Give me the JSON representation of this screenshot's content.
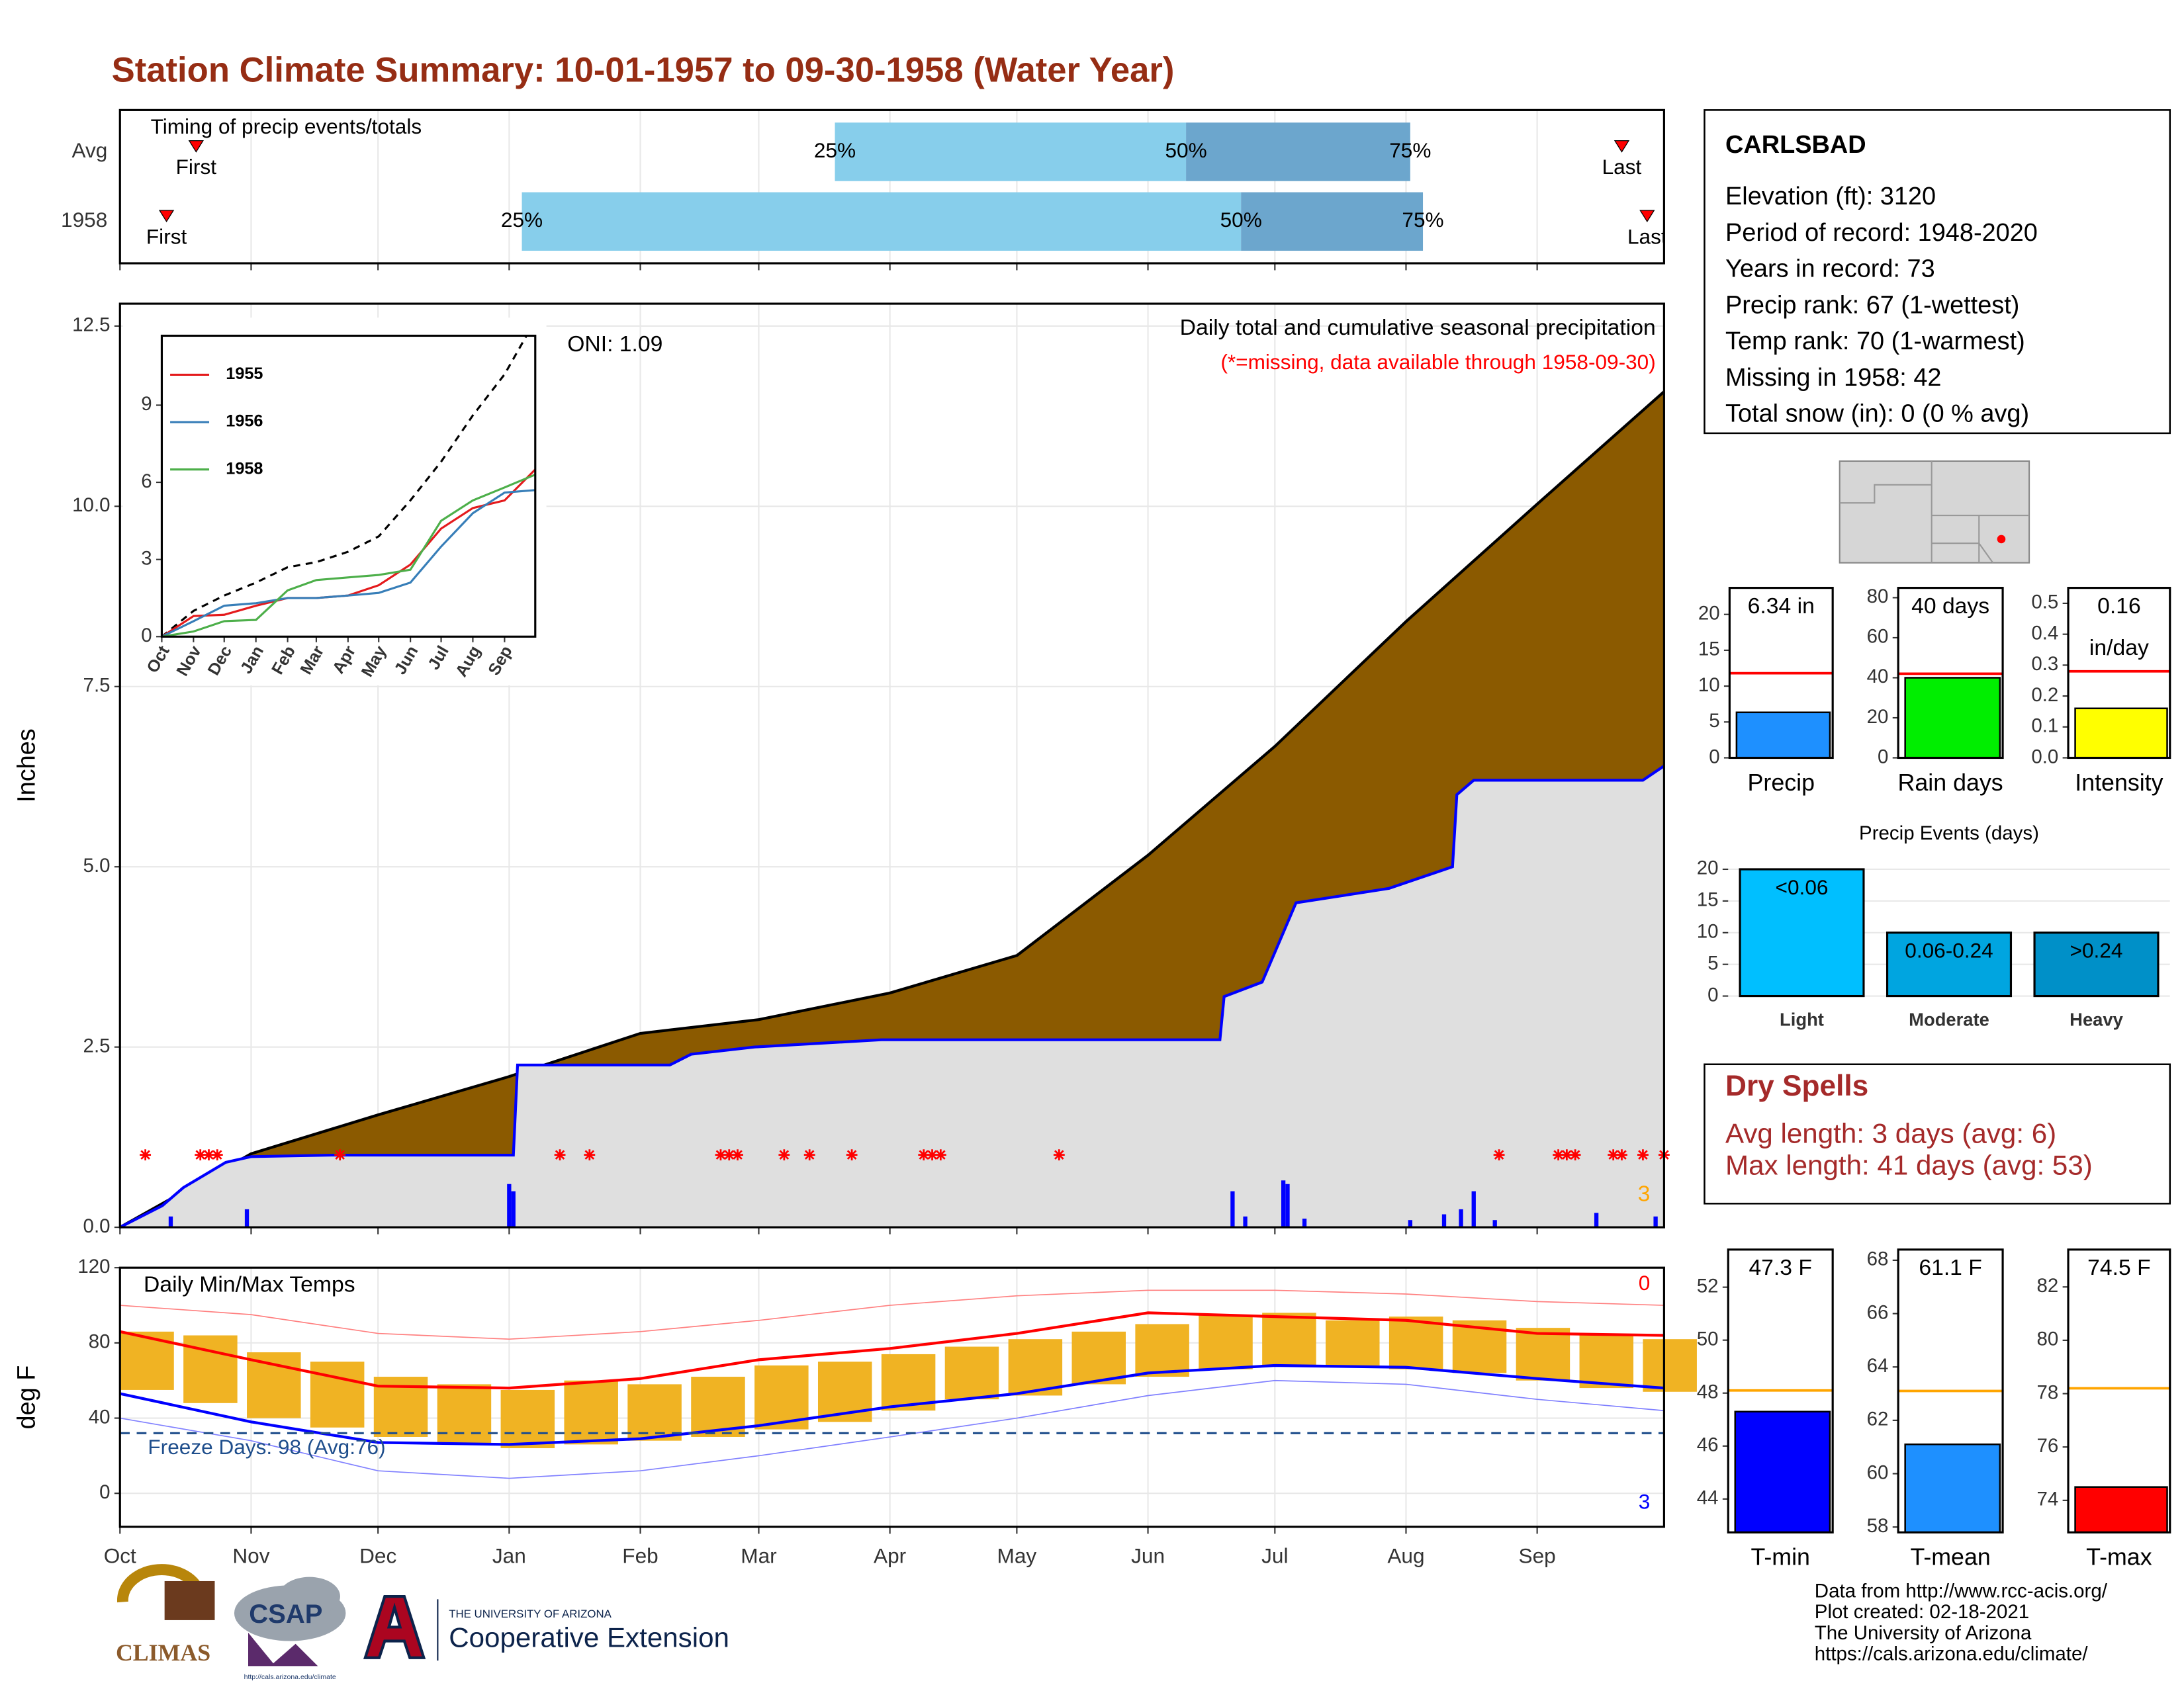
{
  "title": "Station Climate Summary: 10-01-1957 to 09-30-1958 (Water Year)",
  "station": {
    "name": "CARLSBAD",
    "lines": [
      "Elevation (ft): 3120",
      "Period of record: 1948-2020",
      "Years in record: 73",
      "Precip rank: 67 (1-wettest)",
      "Temp rank: 70 (1-warmest)",
      "Missing in 1958: 42",
      "Total snow (in): 0 (0 % avg)"
    ]
  },
  "dry_spells": {
    "title": "Dry Spells",
    "lines": [
      "Avg length: 3 days (avg: 6)",
      "Max length: 41 days (avg: 53)"
    ]
  },
  "footer": {
    "lines": [
      "Data from http://www.rcc-acis.org/",
      "Plot created: 02-18-2021",
      "The University of Arizona",
      "https://cals.arizona.edu/climate/"
    ]
  },
  "logos": {
    "climas": "CLIMAS",
    "csap": "CSAP",
    "csap_url": "http://cals.arizona.edu/climate",
    "university": "THE UNIVERSITY OF ARIZONA",
    "extension": "Cooperative Extension"
  },
  "chart_data": [
    {
      "type": "timing",
      "title": "Timing of precip events/totals",
      "xlim": [
        0,
        365
      ],
      "quantile_labels": [
        "25%",
        "50%",
        "75%"
      ],
      "marker_labels": [
        "First",
        "Last"
      ],
      "colors": [
        "#87CEEB",
        "#6CA6CD"
      ],
      "marker_color": "#FF0000",
      "rows": [
        {
          "name": "Avg",
          "first": 18,
          "last": 355,
          "quantiles": [
            169,
            252,
            305
          ]
        },
        {
          "name": "1958",
          "first": 11,
          "last": 361,
          "quantiles": [
            95,
            265,
            308
          ]
        }
      ]
    },
    {
      "type": "area",
      "title": "Daily total and cumulative seasonal precipitation",
      "subtitle": "(*=missing, data available through 1958-09-30)",
      "annotation": "ONI: 1.09",
      "corner_label": "3",
      "corner_color": "#FFA500",
      "ylabel": "Inches",
      "grid": true,
      "xlim": [
        0,
        365
      ],
      "xticks": [
        {
          "value": 0,
          "label": "Oct"
        },
        {
          "value": 31,
          "label": "Nov"
        },
        {
          "value": 61,
          "label": "Dec"
        },
        {
          "value": 92,
          "label": "Jan"
        },
        {
          "value": 123,
          "label": "Feb"
        },
        {
          "value": 151,
          "label": "Mar"
        },
        {
          "value": 182,
          "label": "Apr"
        },
        {
          "value": 212,
          "label": "May"
        },
        {
          "value": 243,
          "label": "Jun"
        },
        {
          "value": 273,
          "label": "Jul"
        },
        {
          "value": 304,
          "label": "Aug"
        },
        {
          "value": 335,
          "label": "Sep"
        }
      ],
      "ylim": [
        0,
        12.81
      ],
      "yticks": [
        {
          "value": 0,
          "label": "0.0"
        },
        2.5,
        {
          "value": 5,
          "label": "5.0"
        },
        7.5,
        {
          "value": 10,
          "label": "10.0"
        },
        12.5
      ],
      "series": [
        {
          "color": "#8B5A00",
          "outline": "#000000",
          "x": [
            0,
            31,
            61,
            92,
            123,
            151,
            182,
            212,
            243,
            273,
            304,
            335,
            365
          ],
          "values": [
            0,
            1.02,
            1.56,
            2.09,
            2.69,
            2.88,
            3.25,
            3.77,
            5.16,
            6.67,
            8.4,
            10.03,
            11.59
          ]
        },
        {
          "color": "#0000FF",
          "fill": "#DFDFDF",
          "x": [
            0,
            10,
            15,
            25,
            31,
            50,
            93,
            94,
            130,
            135,
            150,
            180,
            260,
            261,
            270,
            278,
            300,
            315,
            316,
            320,
            360,
            365
          ],
          "values": [
            0,
            0.3,
            0.55,
            0.9,
            0.98,
            1.0,
            1.0,
            2.25,
            2.25,
            2.4,
            2.5,
            2.6,
            2.6,
            3.2,
            3.4,
            4.5,
            4.7,
            5.0,
            6.0,
            6.2,
            6.2,
            6.4
          ]
        }
      ],
      "daily": {
        "color": "#0000FF",
        "x": [
          12,
          30,
          92,
          93,
          263,
          266,
          275,
          276,
          280,
          305,
          313,
          317,
          320,
          325,
          349,
          363
        ],
        "values": [
          0.15,
          0.25,
          0.6,
          0.5,
          0.5,
          0.15,
          0.65,
          0.6,
          0.12,
          0.1,
          0.18,
          0.25,
          0.5,
          0.1,
          0.2,
          0.15
        ]
      },
      "missing": {
        "color": "#FF0000",
        "x": [
          6,
          19,
          21,
          23,
          52,
          104,
          111,
          142,
          144,
          146,
          157,
          163,
          173,
          190,
          192,
          194,
          222,
          326,
          340,
          342,
          344,
          353,
          355,
          360,
          365
        ]
      }
    },
    {
      "type": "line",
      "xlim": [
        0,
        365
      ],
      "xticks": [
        {
          "value": 0,
          "label": "Oct"
        },
        {
          "value": 31,
          "label": "Nov"
        },
        {
          "value": 61,
          "label": "Dec"
        },
        {
          "value": 92,
          "label": "Jan"
        },
        {
          "value": 123,
          "label": "Feb"
        },
        {
          "value": 151,
          "label": "Mar"
        },
        {
          "value": 182,
          "label": "Apr"
        },
        {
          "value": 212,
          "label": "May"
        },
        {
          "value": 243,
          "label": "Jun"
        },
        {
          "value": 273,
          "label": "Jul"
        },
        {
          "value": 304,
          "label": "Aug"
        },
        {
          "value": 335,
          "label": "Sep"
        }
      ],
      "ylim": [
        0,
        11.7
      ],
      "yticks": [
        0,
        3,
        6,
        9
      ],
      "x": [
        0,
        31,
        61,
        92,
        123,
        151,
        182,
        212,
        243,
        273,
        304,
        335,
        365
      ],
      "average": {
        "color": "#000000",
        "dashed": true,
        "values": [
          0,
          1.0,
          1.6,
          2.1,
          2.7,
          2.9,
          3.3,
          3.9,
          5.3,
          6.8,
          8.6,
          10.2,
          12.3
        ]
      },
      "series": [
        {
          "name": "1955",
          "color": "#E41A1C",
          "values": [
            0,
            0.8,
            0.85,
            1.2,
            1.5,
            1.5,
            1.6,
            2.0,
            2.8,
            4.2,
            5.0,
            5.3,
            6.5
          ]
        },
        {
          "name": "1956",
          "color": "#377EB8",
          "values": [
            0,
            0.6,
            1.2,
            1.3,
            1.5,
            1.5,
            1.6,
            1.7,
            2.1,
            3.5,
            4.8,
            5.6,
            5.7
          ]
        },
        {
          "name": "1958",
          "color": "#4DAF4A",
          "values": [
            0,
            0.2,
            0.6,
            0.65,
            1.8,
            2.2,
            2.3,
            2.4,
            2.6,
            4.5,
            5.3,
            5.8,
            6.3
          ]
        }
      ]
    },
    {
      "type": "gauge",
      "label": "Precip",
      "values": [
        6.34
      ],
      "value_labels": [
        "6.34 in"
      ],
      "color": "#1E90FF",
      "average": 11.8,
      "average_color": "#FF0000",
      "ylim": [
        0,
        23.7
      ],
      "yticks": [
        0,
        5,
        10,
        15,
        20
      ]
    },
    {
      "type": "gauge",
      "label": "Rain days",
      "values": [
        40
      ],
      "value_labels": [
        "40 days"
      ],
      "color": "#00EE00",
      "average": 42,
      "average_color": "#FF0000",
      "ylim": [
        0,
        84.9
      ],
      "yticks": [
        0,
        20,
        40,
        60,
        80
      ]
    },
    {
      "type": "gauge",
      "label": "Intensity",
      "values": [
        0.16
      ],
      "value_labels": [
        "0.16"
      ],
      "unit": "in/day",
      "color": "#FFFF00",
      "average": 0.28,
      "average_color": "#FF0000",
      "ylim": [
        0,
        0.55
      ],
      "yticks": [
        {
          "value": 0,
          "label": "0.0"
        },
        0.1,
        0.2,
        0.3,
        0.4,
        0.5
      ]
    },
    {
      "type": "bar",
      "title": "Precip Events (days)",
      "categories": [
        "Light",
        "Moderate",
        "Heavy"
      ],
      "values": [
        20,
        10,
        10
      ],
      "bar_labels": [
        "<0.06",
        "0.06-0.24",
        ">0.24"
      ],
      "colors": [
        "#00BFFF",
        "#00A5E0",
        "#0090C8"
      ],
      "ylim": [
        0,
        21.1
      ],
      "yticks": [
        0,
        5,
        10,
        15,
        20
      ],
      "grid": true
    },
    {
      "type": "gauge",
      "label": "T-min",
      "values": [
        47.3
      ],
      "value_labels": [
        "47.3 F"
      ],
      "color": "#0000FF",
      "average": 48.1,
      "average_color": "#FFA500",
      "ylim": [
        42.74,
        53.42
      ],
      "yticks": [
        44,
        46,
        48,
        50,
        52
      ]
    },
    {
      "type": "gauge",
      "label": "T-mean",
      "values": [
        61.1
      ],
      "value_labels": [
        "61.1 F"
      ],
      "color": "#1E90FF",
      "average": 63.1,
      "average_color": "#FFA500",
      "ylim": [
        57.8,
        68.4
      ],
      "yticks": [
        58,
        60,
        62,
        64,
        66,
        68
      ]
    },
    {
      "type": "gauge",
      "label": "T-max",
      "values": [
        74.5
      ],
      "value_labels": [
        "74.5 F"
      ],
      "color": "#FF0000",
      "average": 78.2,
      "average_color": "#FFA500",
      "ylim": [
        72.8,
        83.4
      ],
      "yticks": [
        74,
        76,
        78,
        80,
        82
      ]
    },
    {
      "type": "range",
      "title": "Daily Min/Max Temps",
      "ylabel": "deg F",
      "grid": true,
      "xlim": [
        0,
        365
      ],
      "xticks": [
        {
          "value": 0,
          "label": "Oct"
        },
        {
          "value": 31,
          "label": "Nov"
        },
        {
          "value": 61,
          "label": "Dec"
        },
        {
          "value": 92,
          "label": "Jan"
        },
        {
          "value": 123,
          "label": "Feb"
        },
        {
          "value": 151,
          "label": "Mar"
        },
        {
          "value": 182,
          "label": "Apr"
        },
        {
          "value": 212,
          "label": "May"
        },
        {
          "value": 243,
          "label": "Jun"
        },
        {
          "value": 273,
          "label": "Jul"
        },
        {
          "value": 304,
          "label": "Aug"
        },
        {
          "value": 335,
          "label": "Sep"
        }
      ],
      "ylim": [
        -17.8,
        120
      ],
      "yticks": [
        0,
        40,
        80,
        120
      ],
      "x": [
        0,
        31,
        61,
        92,
        123,
        151,
        182,
        212,
        243,
        273,
        304,
        335,
        365
      ],
      "series": [
        {
          "color": "#FF8080",
          "width": 0.8,
          "values": [
            100,
            95,
            85,
            82,
            86,
            92,
            100,
            105,
            108,
            108,
            106,
            102,
            100
          ]
        },
        {
          "color": "#8080FF",
          "width": 0.8,
          "values": [
            40,
            28,
            12,
            8,
            12,
            20,
            30,
            40,
            52,
            60,
            58,
            50,
            44
          ]
        },
        {
          "color": "#FF0000",
          "width": 2,
          "values": [
            86,
            71,
            57,
            56,
            61,
            71,
            77,
            85,
            96,
            94,
            92,
            85,
            84
          ]
        },
        {
          "color": "#0000FF",
          "width": 2,
          "values": [
            53,
            38,
            27,
            26,
            29,
            36,
            46,
            53,
            64,
            68,
            67,
            61,
            56
          ]
        }
      ],
      "daily": {
        "color": "#F0B323",
        "x": [
          0,
          15,
          30,
          45,
          60,
          75,
          90,
          105,
          120,
          135,
          150,
          165,
          180,
          195,
          210,
          225,
          240,
          255,
          270,
          285,
          300,
          315,
          330,
          345,
          360
        ],
        "high": [
          86,
          84,
          75,
          70,
          62,
          58,
          55,
          60,
          58,
          62,
          68,
          70,
          74,
          78,
          82,
          86,
          90,
          95,
          96,
          92,
          94,
          92,
          88,
          84,
          82
        ],
        "low": [
          55,
          48,
          40,
          35,
          30,
          26,
          24,
          26,
          28,
          30,
          34,
          38,
          44,
          50,
          52,
          58,
          62,
          66,
          68,
          68,
          66,
          64,
          60,
          56,
          54
        ]
      },
      "freeze": {
        "value": 32,
        "label": "Freeze Days: 98 (Avg:76)",
        "color": "#1F4E8C"
      },
      "corner_labels": [
        {
          "text": "0",
          "color": "#FF0000"
        },
        {
          "text": "3",
          "color": "#0000FF"
        }
      ]
    }
  ]
}
